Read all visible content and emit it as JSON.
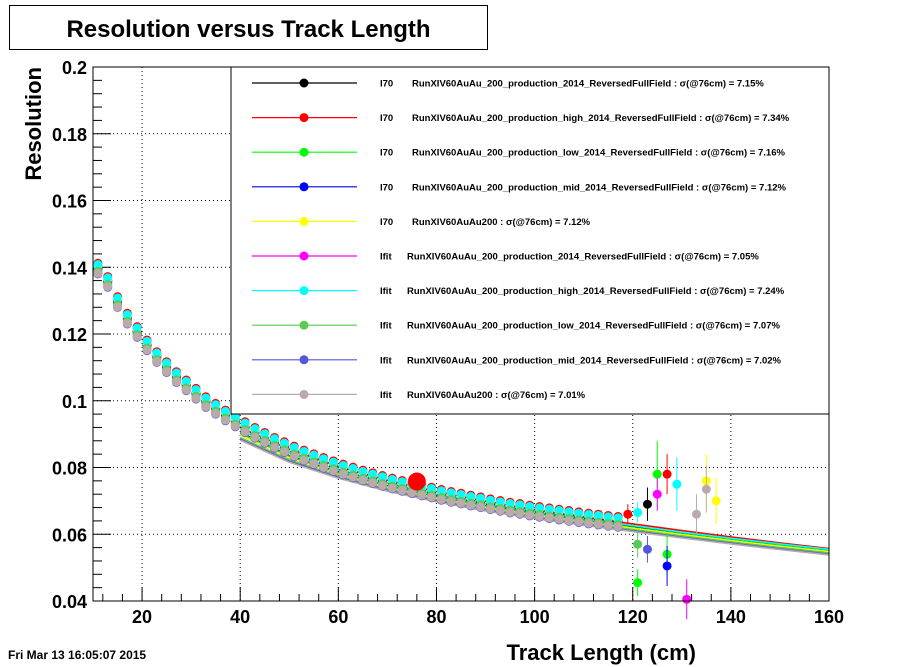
{
  "canvas_title": "Resolution versus Track Length",
  "timestamp": "Fri Mar 13 16:05:07 2015",
  "chart_data": {
    "type": "scatter",
    "title": "Resolution versus Track Length",
    "xlabel": "Track Length (cm)",
    "ylabel": "Resolution",
    "xlim": [
      10,
      160
    ],
    "ylim": [
      0.04,
      0.2
    ],
    "x_ticks": [
      20,
      40,
      60,
      80,
      100,
      120,
      140,
      160
    ],
    "x_tick_labels": [
      "20",
      "40",
      "60",
      "80",
      "100",
      "120",
      "140",
      "160"
    ],
    "y_ticks": [
      0.04,
      0.06,
      0.08,
      0.1,
      0.12,
      0.14,
      0.16,
      0.18,
      0.2
    ],
    "y_tick_labels": [
      "0.04",
      "0.06",
      "0.08",
      "0.1",
      "0.12",
      "0.14",
      "0.16",
      "0.18",
      "0.2"
    ],
    "grid": true,
    "legend_position": "top-right",
    "highlight_point": {
      "x": 76,
      "y": 0.0758,
      "color": "#ff0000"
    },
    "series": [
      {
        "method": "I70",
        "name": "RunXIV60AuAu_200_production_2014_ReversedFullField",
        "sigma": "7.15%",
        "color": "#000000",
        "marker_offset": 0.0,
        "curve_x": [
          40,
          50,
          60,
          70,
          80,
          90,
          100,
          110,
          120,
          130,
          140,
          150,
          160
        ],
        "curve_y": [
          0.0905,
          0.0835,
          0.0785,
          0.0745,
          0.0712,
          0.0685,
          0.0662,
          0.0642,
          0.0622,
          0.0603,
          0.0585,
          0.0568,
          0.0552
        ]
      },
      {
        "method": "I70",
        "name": "RunXIV60AuAu_200_production_high_2014_ReversedFullField",
        "sigma": "7.34%",
        "color": "#ff0000",
        "marker_offset": 0.0012,
        "curve_x": [
          40,
          50,
          60,
          70,
          80,
          90,
          100,
          110,
          120,
          130,
          140,
          150,
          160
        ],
        "curve_y": [
          0.092,
          0.0855,
          0.0803,
          0.0762,
          0.0728,
          0.0699,
          0.0674,
          0.0652,
          0.0631,
          0.0611,
          0.0592,
          0.0574,
          0.0557
        ]
      },
      {
        "method": "I70",
        "name": "RunXIV60AuAu_200_production_low_2014_ReversedFullField",
        "sigma": "7.16%",
        "color": "#00ff00",
        "marker_offset": -0.0008,
        "curve_x": [
          40,
          50,
          60,
          70,
          80,
          90,
          100,
          110,
          120,
          130,
          140,
          150,
          160
        ],
        "curve_y": [
          0.0903,
          0.0833,
          0.0783,
          0.0743,
          0.071,
          0.0683,
          0.066,
          0.064,
          0.062,
          0.0601,
          0.0583,
          0.0566,
          0.055
        ]
      },
      {
        "method": "I70",
        "name": "RunXIV60AuAu_200_production_mid_2014_ReversedFullField",
        "sigma": "7.12%",
        "color": "#0000ff",
        "marker_offset": -0.0004,
        "curve_x": [
          40,
          50,
          60,
          70,
          80,
          90,
          100,
          110,
          120,
          130,
          140,
          150,
          160
        ],
        "curve_y": [
          0.0898,
          0.0829,
          0.078,
          0.074,
          0.0708,
          0.0681,
          0.0658,
          0.0638,
          0.0618,
          0.0599,
          0.0581,
          0.0564,
          0.0548
        ]
      },
      {
        "method": "I70",
        "name": "RunXIV60AuAu200",
        "sigma": "7.12%",
        "color": "#ffff00",
        "marker_offset": 0.0004,
        "curve_x": [
          40,
          50,
          60,
          70,
          80,
          90,
          100,
          110,
          120,
          130,
          140,
          150,
          160
        ],
        "curve_y": [
          0.0898,
          0.0829,
          0.078,
          0.074,
          0.0708,
          0.0681,
          0.0658,
          0.0638,
          0.0618,
          0.0599,
          0.0581,
          0.0564,
          0.0548
        ]
      },
      {
        "method": "Ifit",
        "name": "RunXIV60AuAu_200_production_2014_ReversedFullField",
        "sigma": "7.05%",
        "color": "#ff00ff",
        "marker_offset": -0.0016,
        "curve_x": [
          40,
          50,
          60,
          70,
          80,
          90,
          100,
          110,
          120,
          130,
          140,
          150,
          160
        ],
        "curve_y": [
          0.0888,
          0.0822,
          0.0773,
          0.0734,
          0.0702,
          0.0675,
          0.0652,
          0.0632,
          0.0613,
          0.0594,
          0.0576,
          0.0559,
          0.0543
        ]
      },
      {
        "method": "Ifit",
        "name": "RunXIV60AuAu_200_production_high_2014_ReversedFullField",
        "sigma": "7.24%",
        "color": "#00ffff",
        "marker_offset": 0.0008,
        "curve_x": [
          40,
          50,
          60,
          70,
          80,
          90,
          100,
          110,
          120,
          130,
          140,
          150,
          160
        ],
        "curve_y": [
          0.0912,
          0.0843,
          0.0792,
          0.0752,
          0.0719,
          0.0691,
          0.0667,
          0.0646,
          0.0626,
          0.0606,
          0.0588,
          0.0571,
          0.0555
        ]
      },
      {
        "method": "Ifit",
        "name": "RunXIV60AuAu_200_production_low_2014_ReversedFullField",
        "sigma": "7.07%",
        "color": "#55cc55",
        "marker_offset": -0.0012,
        "curve_x": [
          40,
          50,
          60,
          70,
          80,
          90,
          100,
          110,
          120,
          130,
          140,
          150,
          160
        ],
        "curve_y": [
          0.089,
          0.0823,
          0.0774,
          0.0735,
          0.0703,
          0.0676,
          0.0653,
          0.0633,
          0.0614,
          0.0595,
          0.0577,
          0.056,
          0.0544
        ]
      },
      {
        "method": "Ifit",
        "name": "RunXIV60AuAu_200_production_mid_2014_ReversedFullField",
        "sigma": "7.02%",
        "color": "#5555dd",
        "marker_offset": -0.002,
        "curve_x": [
          40,
          50,
          60,
          70,
          80,
          90,
          100,
          110,
          120,
          130,
          140,
          150,
          160
        ],
        "curve_y": [
          0.0884,
          0.0818,
          0.077,
          0.0731,
          0.0699,
          0.0672,
          0.0649,
          0.0629,
          0.061,
          0.0591,
          0.0573,
          0.0556,
          0.054
        ]
      },
      {
        "method": "Ifit",
        "name": "RunXIV60AuAu200",
        "sigma": "7.01%",
        "color": "#bbaaaa",
        "marker_offset": -0.0018,
        "curve_x": [
          40,
          50,
          60,
          70,
          80,
          90,
          100,
          110,
          120,
          130,
          140,
          150,
          160
        ],
        "curve_y": [
          0.0882,
          0.0816,
          0.0768,
          0.0729,
          0.0697,
          0.067,
          0.0647,
          0.0627,
          0.0608,
          0.0589,
          0.0571,
          0.0554,
          0.0538
        ]
      }
    ],
    "base_points": {
      "x": [
        11,
        13,
        15,
        17,
        19,
        21,
        23,
        25,
        27,
        29,
        31,
        33,
        35,
        37,
        39,
        41,
        43,
        45,
        47,
        49,
        51,
        53,
        55,
        57,
        59,
        61,
        63,
        65,
        67,
        69,
        71,
        73,
        75,
        77,
        79,
        81,
        83,
        85,
        87,
        89,
        91,
        93,
        95,
        97,
        99,
        101,
        103,
        105,
        107,
        109,
        111,
        113,
        115,
        117
      ],
      "y": [
        0.14,
        0.136,
        0.13,
        0.125,
        0.121,
        0.117,
        0.1135,
        0.1105,
        0.1075,
        0.105,
        0.1025,
        0.1,
        0.098,
        0.096,
        0.0942,
        0.0925,
        0.0908,
        0.0893,
        0.0878,
        0.0865,
        0.0852,
        0.084,
        0.0829,
        0.0818,
        0.0808,
        0.0798,
        0.0789,
        0.078,
        0.0772,
        0.0764,
        0.0756,
        0.0749,
        0.0742,
        0.0735,
        0.0729,
        0.0722,
        0.0716,
        0.0711,
        0.0705,
        0.07,
        0.0694,
        0.0689,
        0.0684,
        0.068,
        0.0675,
        0.0671,
        0.0667,
        0.0663,
        0.0659,
        0.0655,
        0.0651,
        0.0648,
        0.0644,
        0.0641
      ]
    },
    "tail_points": [
      {
        "series": 0,
        "x": 123,
        "y": 0.069,
        "err": 0.005
      },
      {
        "series": 1,
        "x": 127,
        "y": 0.078,
        "err": 0.006
      },
      {
        "series": 1,
        "x": 119,
        "y": 0.066,
        "err": 0.003
      },
      {
        "series": 2,
        "x": 121,
        "y": 0.0455,
        "err": 0.004
      },
      {
        "series": 2,
        "x": 125,
        "y": 0.078,
        "err": 0.01
      },
      {
        "series": 2,
        "x": 127,
        "y": 0.054,
        "err": 0.006
      },
      {
        "series": 3,
        "x": 127,
        "y": 0.0505,
        "err": 0.006
      },
      {
        "series": 4,
        "x": 135,
        "y": 0.076,
        "err": 0.008
      },
      {
        "series": 4,
        "x": 137,
        "y": 0.07,
        "err": 0.007
      },
      {
        "series": 5,
        "x": 131,
        "y": 0.0405,
        "err": 0.006
      },
      {
        "series": 5,
        "x": 125,
        "y": 0.072,
        "err": 0.005
      },
      {
        "series": 6,
        "x": 129,
        "y": 0.075,
        "err": 0.008
      },
      {
        "series": 6,
        "x": 121,
        "y": 0.0665,
        "err": 0.003
      },
      {
        "series": 7,
        "x": 121,
        "y": 0.057,
        "err": 0.004
      },
      {
        "series": 8,
        "x": 123,
        "y": 0.0555,
        "err": 0.004
      },
      {
        "series": 9,
        "x": 133,
        "y": 0.066,
        "err": 0.006
      },
      {
        "series": 9,
        "x": 135,
        "y": 0.0735,
        "err": 0.007
      }
    ]
  }
}
